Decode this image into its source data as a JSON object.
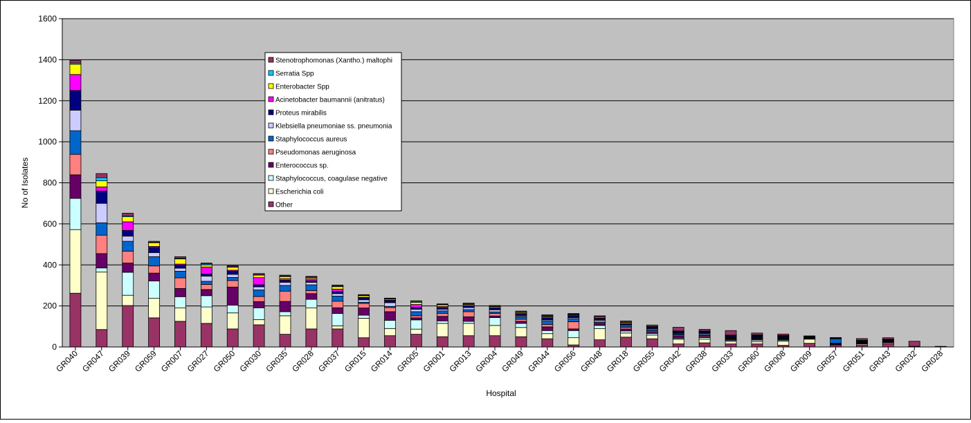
{
  "chart_data": {
    "type": "stacked-bar",
    "xlabel": "Hospital",
    "ylabel": "No of Isolates",
    "ylim": [
      0,
      1600
    ],
    "yticks": [
      0,
      200,
      400,
      600,
      800,
      1000,
      1200,
      1400,
      1600
    ],
    "grid": true,
    "plot_background": "#c0c0c0",
    "legend_placement": "top-center",
    "categories": [
      "GR040",
      "GR047",
      "GR039",
      "GR059",
      "GR007",
      "GR027",
      "GR050",
      "GR030",
      "GR035",
      "GR028",
      "GR037",
      "GR015",
      "GR014",
      "GR005",
      "GR001",
      "GR013",
      "GR004",
      "GR049",
      "GR044",
      "GR056",
      "GR048",
      "GR018",
      "GR055",
      "GR042",
      "GR038",
      "GR033",
      "GR060",
      "GR008",
      "GR009",
      "GR057",
      "GR051",
      "GR043",
      "GR032",
      "GR028"
    ],
    "series": [
      {
        "name": "Other",
        "color": "#993366",
        "values": [
          262,
          85,
          202,
          142,
          125,
          115,
          88,
          108,
          62,
          88,
          88,
          45,
          55,
          62,
          50,
          55,
          55,
          50,
          40,
          10,
          35,
          48,
          40,
          15,
          20,
          15,
          15,
          8,
          18,
          10,
          10,
          15,
          3,
          0
        ]
      },
      {
        "name": "Escherichia coli",
        "color": "#ffffcc",
        "values": [
          310,
          280,
          50,
          95,
          65,
          80,
          78,
          25,
          90,
          102,
          15,
          95,
          35,
          25,
          65,
          60,
          50,
          45,
          25,
          35,
          55,
          20,
          18,
          22,
          18,
          12,
          10,
          20,
          20,
          2,
          5,
          5,
          0,
          0
        ]
      },
      {
        "name": "Staphylococcus, coagulase negative",
        "color": "#ccffff",
        "values": [
          152,
          20,
          112,
          85,
          55,
          55,
          38,
          58,
          20,
          42,
          60,
          15,
          40,
          45,
          12,
          10,
          38,
          20,
          15,
          35,
          15,
          10,
          8,
          5,
          8,
          5,
          8,
          5,
          2,
          3,
          2,
          2,
          0,
          0
        ]
      },
      {
        "name": "Enterococcus sp.",
        "color": "#660066",
        "values": [
          115,
          70,
          45,
          38,
          40,
          30,
          88,
          30,
          50,
          28,
          28,
          35,
          42,
          10,
          22,
          22,
          8,
          10,
          18,
          8,
          8,
          10,
          6,
          12,
          5,
          6,
          6,
          5,
          2,
          2,
          2,
          3,
          0,
          0
        ]
      },
      {
        "name": "Pseudomonas aeruginosa",
        "color": "#ff8080",
        "values": [
          100,
          90,
          58,
          35,
          52,
          25,
          32,
          25,
          50,
          15,
          32,
          22,
          20,
          10,
          15,
          25,
          12,
          10,
          12,
          35,
          5,
          8,
          5,
          5,
          5,
          3,
          3,
          2,
          2,
          1,
          2,
          2,
          0,
          0
        ]
      },
      {
        "name": "Staphylococcus aureus",
        "color": "#0066cc",
        "values": [
          115,
          60,
          48,
          45,
          32,
          15,
          15,
          32,
          28,
          28,
          25,
          6,
          6,
          20,
          12,
          10,
          8,
          12,
          18,
          15,
          4,
          6,
          6,
          5,
          5,
          3,
          3,
          3,
          2,
          22,
          2,
          3,
          0,
          0
        ]
      },
      {
        "name": "Klebsiella pneumoniae ss. pneumonia",
        "color": "#ccccff",
        "values": [
          100,
          95,
          25,
          20,
          15,
          25,
          15,
          15,
          15,
          12,
          12,
          12,
          18,
          12,
          8,
          10,
          10,
          5,
          5,
          5,
          8,
          5,
          5,
          3,
          5,
          3,
          3,
          2,
          1,
          1,
          2,
          2,
          0,
          0
        ]
      },
      {
        "name": "Proteus mirabilis",
        "color": "#000080",
        "values": [
          96,
          60,
          28,
          25,
          15,
          10,
          15,
          10,
          10,
          8,
          10,
          10,
          10,
          8,
          8,
          8,
          8,
          8,
          8,
          8,
          8,
          5,
          5,
          5,
          5,
          5,
          5,
          5,
          2,
          2,
          5,
          3,
          0,
          0
        ]
      },
      {
        "name": "Acinetobacter baumannii (anitratus)",
        "color": "#ff00ff",
        "values": [
          78,
          20,
          42,
          5,
          5,
          35,
          5,
          35,
          8,
          10,
          12,
          2,
          3,
          15,
          5,
          2,
          3,
          3,
          5,
          2,
          2,
          2,
          2,
          2,
          2,
          2,
          2,
          2,
          1,
          1,
          1,
          1,
          0,
          0
        ]
      },
      {
        "name": "Enterobacter Spp",
        "color": "#ffff00",
        "values": [
          50,
          30,
          25,
          18,
          25,
          10,
          15,
          12,
          10,
          6,
          12,
          8,
          5,
          10,
          8,
          5,
          5,
          5,
          4,
          4,
          5,
          5,
          3,
          2,
          3,
          2,
          2,
          2,
          1,
          0,
          1,
          1,
          0,
          0
        ]
      },
      {
        "name": "Serratia Spp",
        "color": "#00ccff",
        "values": [
          6,
          15,
          5,
          2,
          3,
          5,
          2,
          2,
          3,
          2,
          3,
          2,
          2,
          5,
          2,
          2,
          2,
          2,
          2,
          3,
          2,
          2,
          2,
          2,
          2,
          2,
          2,
          2,
          1,
          0,
          1,
          1,
          0,
          0
        ]
      },
      {
        "name": "Stenotrophomonas (Xantho.) maltophi",
        "color": "#993366",
        "values": [
          12,
          20,
          12,
          5,
          8,
          4,
          5,
          6,
          4,
          3,
          5,
          3,
          2,
          3,
          3,
          5,
          3,
          5,
          5,
          3,
          5,
          6,
          7,
          18,
          8,
          22,
          9,
          7,
          2,
          2,
          8,
          7,
          25,
          3
        ]
      }
    ]
  }
}
